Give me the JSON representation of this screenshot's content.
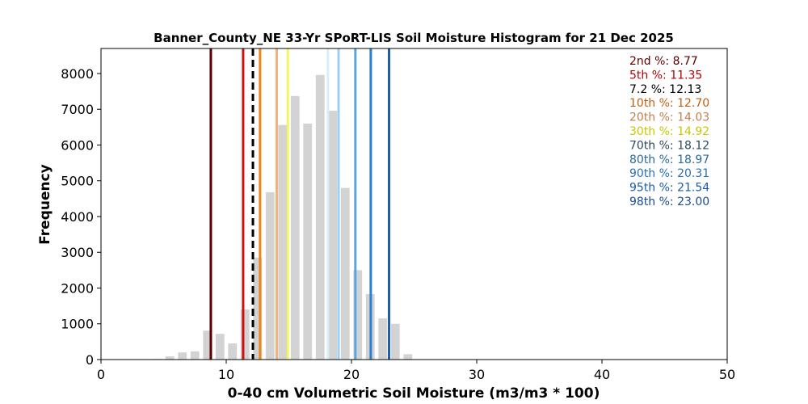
{
  "chart_data": {
    "type": "bar",
    "title": "Banner_County_NE 33-Yr SPoRT-LIS Soil Moisture Histogram for 21 Dec 2025",
    "xlabel": "0-40 cm Volumetric Soil Moisture (m3/m3 * 100)",
    "ylabel": "Frequency",
    "xlim": [
      0,
      50
    ],
    "ylim": [
      0,
      8700
    ],
    "xticks": [
      0,
      10,
      20,
      30,
      40,
      50
    ],
    "yticks": [
      0,
      1000,
      2000,
      3000,
      4000,
      5000,
      6000,
      7000,
      8000
    ],
    "bar_color": "#d3d3d3",
    "bar_width": 0.7,
    "bars": [
      {
        "x": 4.5,
        "value": 15
      },
      {
        "x": 5.5,
        "value": 90
      },
      {
        "x": 6.5,
        "value": 200
      },
      {
        "x": 7.5,
        "value": 230
      },
      {
        "x": 8.5,
        "value": 810
      },
      {
        "x": 9.5,
        "value": 720
      },
      {
        "x": 10.5,
        "value": 450
      },
      {
        "x": 11.5,
        "value": 1400
      },
      {
        "x": 12.5,
        "value": 2850
      },
      {
        "x": 13.5,
        "value": 4680
      },
      {
        "x": 14.5,
        "value": 6560
      },
      {
        "x": 15.5,
        "value": 7370
      },
      {
        "x": 16.5,
        "value": 6600
      },
      {
        "x": 17.5,
        "value": 7960
      },
      {
        "x": 18.5,
        "value": 6960
      },
      {
        "x": 19.5,
        "value": 4800
      },
      {
        "x": 20.5,
        "value": 2500
      },
      {
        "x": 21.5,
        "value": 1830
      },
      {
        "x": 22.5,
        "value": 1150
      },
      {
        "x": 23.5,
        "value": 1000
      },
      {
        "x": 24.5,
        "value": 150
      }
    ],
    "percentile_lines": [
      {
        "label": "2nd %",
        "value": 8.77,
        "value_text": "8.77",
        "color": "#5a0000",
        "dashed": false
      },
      {
        "label": "5th %",
        "value": 11.35,
        "value_text": "11.35",
        "color": "#cc1010",
        "dashed": false
      },
      {
        "label": "7.2 %",
        "value": 12.13,
        "value_text": "12.13",
        "color": "#000000",
        "dashed": true
      },
      {
        "label": "10th %",
        "value": 12.7,
        "value_text": "12.70",
        "color": "#e8861a",
        "dashed": false
      },
      {
        "label": "20th %",
        "value": 14.03,
        "value_text": "14.03",
        "color": "#f5b07a",
        "dashed": false
      },
      {
        "label": "30th %",
        "value": 14.92,
        "value_text": "14.92",
        "color": "#f5f560",
        "dashed": false
      },
      {
        "label": "70th %",
        "value": 18.12,
        "value_text": "18.12",
        "color": "#d8eef8",
        "dashed": false
      },
      {
        "label": "80th %",
        "value": 18.97,
        "value_text": "18.97",
        "color": "#9fcff0",
        "dashed": false
      },
      {
        "label": "90th %",
        "value": 20.31,
        "value_text": "20.31",
        "color": "#5aa6e0",
        "dashed": false
      },
      {
        "label": "95th %",
        "value": 21.54,
        "value_text": "21.54",
        "color": "#2f7fd0",
        "dashed": false
      },
      {
        "label": "98th %",
        "value": 23.0,
        "value_text": "23.00",
        "color": "#1f5fa8",
        "dashed": false
      }
    ],
    "legend": {
      "placement": "top-right",
      "entries": [
        {
          "text": "2nd %: 8.77",
          "color": "#5a0000"
        },
        {
          "text": "5th %: 11.35",
          "color": "#b00000"
        },
        {
          "text": "7.2 %: 12.13",
          "color": "#000000"
        },
        {
          "text": "10th %: 12.70",
          "color": "#c06010"
        },
        {
          "text": "20th %: 14.03",
          "color": "#c08050"
        },
        {
          "text": "30th %: 14.92",
          "color": "#c8c800"
        },
        {
          "text": "70th %: 18.12",
          "color": "#2a4a5a"
        },
        {
          "text": "80th %: 18.97",
          "color": "#2a6a9a"
        },
        {
          "text": "90th %: 20.31",
          "color": "#2a70b8"
        },
        {
          "text": "95th %: 21.54",
          "color": "#1a5aa8"
        },
        {
          "text": "98th %: 23.00",
          "color": "#1a4a90"
        }
      ]
    },
    "grid": false
  }
}
